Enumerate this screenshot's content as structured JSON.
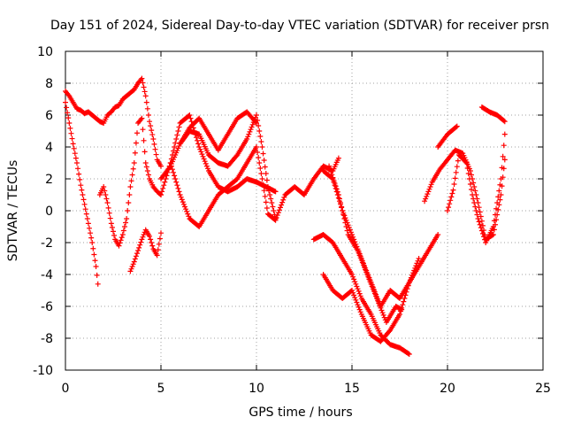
{
  "chart_data": {
    "type": "scatter",
    "title": "Day 151 of 2024, Sidereal Day-to-day VTEC variation (SDTVAR) for receiver prsn",
    "xlabel": "GPS time / hours",
    "ylabel": "SDTVAR / TECUs",
    "xlim": [
      0,
      25
    ],
    "ylim": [
      -10,
      10
    ],
    "xticks": [
      "0",
      "5",
      "10",
      "15",
      "20",
      "25"
    ],
    "yticks": [
      "-10",
      "-8",
      "-6",
      "-4",
      "-2",
      "0",
      "2",
      "4",
      "6",
      "8",
      "10"
    ],
    "grid": true,
    "marker": "+",
    "colors": {
      "series": "#ff0000",
      "grid": "#a0a0a0",
      "axes": "#000000"
    },
    "series": [
      {
        "x": [
          0,
          0.2,
          0.4,
          0.6,
          0.8,
          1.0,
          1.2,
          1.4,
          1.6,
          1.8,
          2.0,
          2.2,
          2.4,
          2.6,
          2.8,
          3.0,
          3.2,
          3.4,
          3.6,
          3.8,
          4.0,
          4.2,
          4.4,
          4.6,
          4.8,
          5.0
        ],
        "y": [
          7.5,
          7.2,
          6.8,
          6.4,
          6.3,
          6.1,
          6.2,
          6.0,
          5.8,
          5.6,
          5.5,
          6.0,
          6.2,
          6.5,
          6.6,
          7.0,
          7.2,
          7.4,
          7.6,
          8.0,
          8.3,
          7.2,
          5.6,
          4.5,
          3.2,
          2.8
        ]
      },
      {
        "x": [
          0,
          0.2,
          0.4,
          0.6,
          0.8,
          1.0,
          1.2,
          1.4,
          1.6,
          1.7
        ],
        "y": [
          6.8,
          5.5,
          4.2,
          3.0,
          1.6,
          0.4,
          -0.8,
          -2.0,
          -3.5,
          -4.6
        ]
      },
      {
        "x": [
          1.8,
          2.0,
          2.2,
          2.4,
          2.6,
          2.8,
          3.0,
          3.2,
          3.4,
          3.6,
          3.8,
          4.0,
          4.2,
          4.4,
          4.6,
          4.8,
          5.0
        ],
        "y": [
          1.0,
          1.5,
          0.5,
          -0.8,
          -1.8,
          -2.2,
          -1.5,
          -0.5,
          1.5,
          3.0,
          5.5,
          5.8,
          3.0,
          2.0,
          1.5,
          1.2,
          1.0
        ]
      },
      {
        "x": [
          3.4,
          3.6,
          3.8,
          4.0,
          4.2,
          4.4,
          4.6,
          4.8,
          5.0
        ],
        "y": [
          -3.8,
          -3.2,
          -2.5,
          -1.8,
          -1.2,
          -1.6,
          -2.4,
          -2.8,
          -1.4
        ]
      },
      {
        "x": [
          5.0,
          5.5,
          6.0,
          6.5,
          7.0,
          7.5,
          8.0,
          8.5,
          9.0,
          9.5,
          10.0,
          10.5,
          11.0
        ],
        "y": [
          1.0,
          3.0,
          5.5,
          6.0,
          4.0,
          2.5,
          1.5,
          1.2,
          1.5,
          2.0,
          1.8,
          1.5,
          1.2
        ]
      },
      {
        "x": [
          5.0,
          5.5,
          6.0,
          6.5,
          7.0,
          7.5,
          8.0,
          8.5,
          9.0,
          9.5,
          10.0,
          10.3,
          10.6,
          11.0
        ],
        "y": [
          2.0,
          2.8,
          4.2,
          5.0,
          4.8,
          3.5,
          3.0,
          2.8,
          3.5,
          4.5,
          6.0,
          4.0,
          1.5,
          -0.5
        ]
      },
      {
        "x": [
          5.5,
          6.0,
          6.5,
          7.0,
          7.5,
          8.0,
          8.5,
          9.0,
          9.5,
          10.0,
          10.3,
          10.6,
          11.0,
          11.5,
          12.0,
          12.5,
          13.0,
          13.5,
          14.0,
          14.3
        ],
        "y": [
          3.0,
          1.0,
          -0.5,
          -1.0,
          0.0,
          1.0,
          1.5,
          2.0,
          3.0,
          4.0,
          2.0,
          -0.2,
          -0.6,
          1.0,
          1.5,
          1.0,
          2.0,
          2.8,
          2.5,
          3.3
        ]
      },
      {
        "x": [
          6.0,
          6.5,
          7.0,
          7.5,
          8.0,
          8.5,
          9.0,
          9.5,
          10.0
        ],
        "y": [
          4.2,
          5.2,
          5.8,
          4.8,
          3.8,
          4.8,
          5.8,
          6.2,
          5.5
        ]
      },
      {
        "x": [
          13.0,
          13.5,
          14.0,
          14.5,
          15.0,
          15.5,
          16.0,
          16.5,
          17.0,
          17.5,
          18.0
        ],
        "y": [
          -1.8,
          -1.5,
          -2.0,
          -3.0,
          -4.0,
          -5.5,
          -6.5,
          -7.8,
          -8.4,
          -8.6,
          -9.0
        ]
      },
      {
        "x": [
          13.5,
          14.0,
          14.5,
          15.0,
          15.5,
          16.0,
          16.5,
          17.0,
          17.5,
          18.0,
          18.5,
          19.0,
          19.5
        ],
        "y": [
          -4.0,
          -5.0,
          -5.5,
          -5.0,
          -6.5,
          -7.8,
          -8.2,
          -7.5,
          -6.5,
          -4.5,
          -3.5,
          -2.5,
          -1.5
        ]
      },
      {
        "x": [
          13.5,
          14.0,
          14.5,
          15.0,
          15.5,
          16.0,
          16.5,
          17.0,
          17.5,
          18.0,
          18.5
        ],
        "y": [
          2.5,
          2.0,
          0.0,
          -1.5,
          -3.0,
          -4.5,
          -6.0,
          -5.0,
          -5.5,
          -4.5,
          -3.0
        ]
      },
      {
        "x": [
          13.8,
          14.3,
          14.8,
          15.3,
          15.8,
          16.3,
          16.8,
          17.3,
          17.6
        ],
        "y": [
          2.8,
          1.0,
          -1.5,
          -2.5,
          -4.0,
          -5.5,
          -7.0,
          -6.0,
          -6.2
        ]
      },
      {
        "x": [
          18.8,
          19.2,
          19.6,
          20.0,
          20.4,
          20.8,
          21.2,
          21.6,
          22.0,
          22.4,
          22.8,
          23.0
        ],
        "y": [
          0.6,
          1.8,
          2.6,
          3.2,
          3.8,
          3.6,
          2.5,
          0.5,
          -1.8,
          -1.5,
          1.0,
          3.2
        ]
      },
      {
        "x": [
          19.5,
          20.0,
          20.5
        ],
        "y": [
          4.0,
          4.8,
          5.3
        ]
      },
      {
        "x": [
          20.0,
          20.3,
          20.6,
          21.0,
          21.3,
          21.6,
          22.0,
          22.4,
          22.8,
          23.0
        ],
        "y": [
          0.0,
          1.3,
          3.5,
          3.0,
          1.0,
          -0.5,
          -2.0,
          -1.0,
          2.0,
          4.8
        ]
      },
      {
        "x": [
          21.8,
          22.2,
          22.6,
          23.0
        ],
        "y": [
          6.5,
          6.2,
          6.0,
          5.6
        ]
      }
    ]
  }
}
